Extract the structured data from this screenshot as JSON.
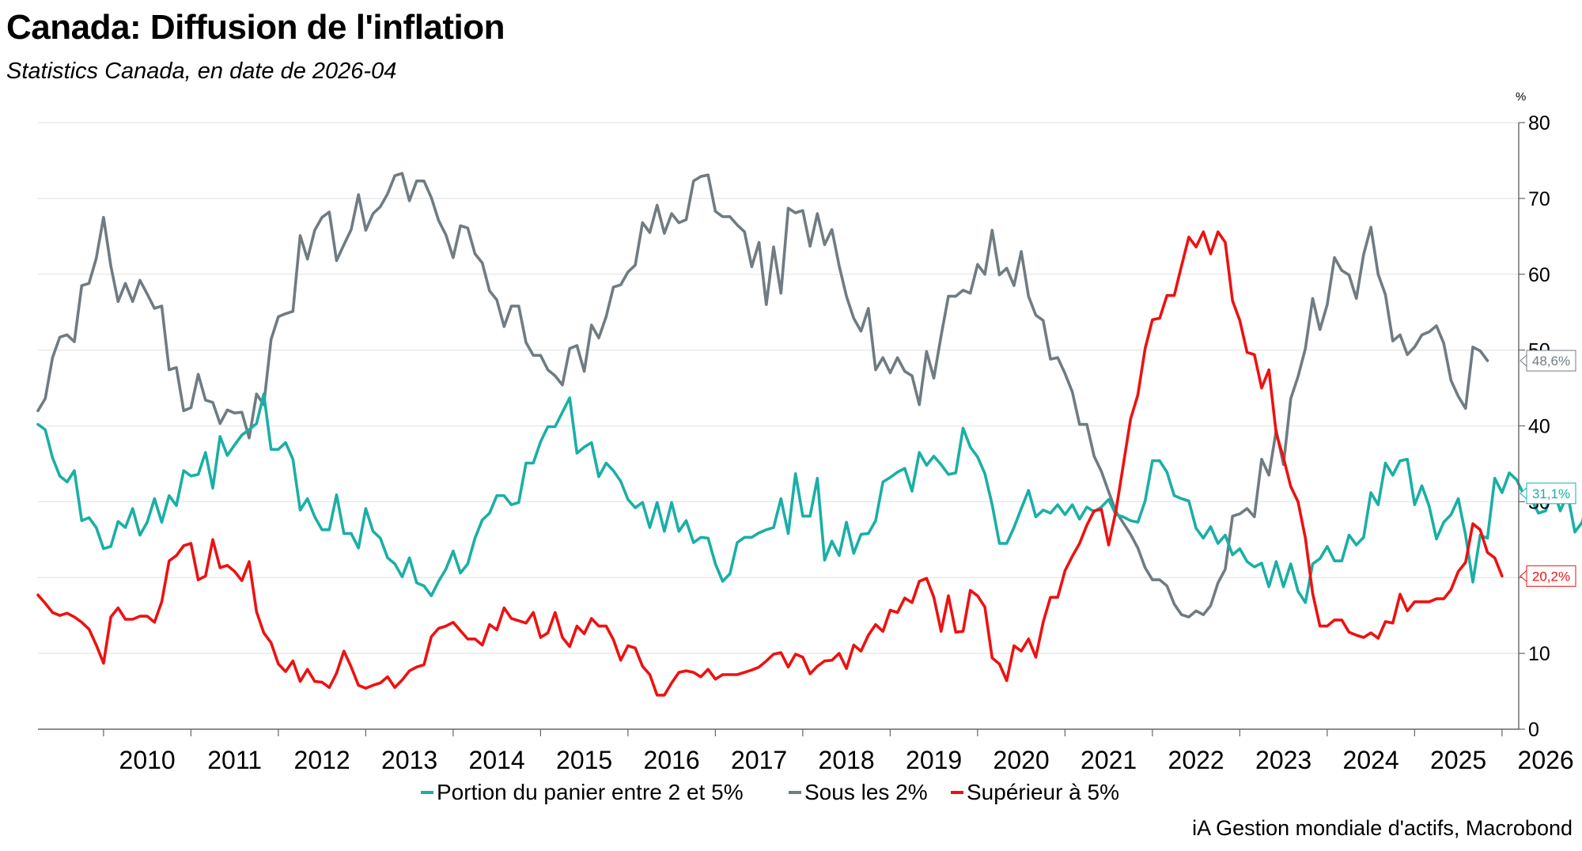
{
  "title": "Canada: Diffusion de l'inflation",
  "subtitle": "Statistics Canada, en date de 2026-04",
  "source": "iA Gestion mondiale d'actifs, Macrobond",
  "chart_data": {
    "type": "line",
    "y_unit": "%",
    "ylim": [
      0,
      80
    ],
    "y_ticks": [
      0,
      10,
      20,
      30,
      40,
      50,
      60,
      70,
      80
    ],
    "x_start": "2009-04",
    "x_end": "2026-04",
    "x_tick_labels": [
      "2010",
      "2011",
      "2012",
      "2013",
      "2014",
      "2015",
      "2016",
      "2017",
      "2018",
      "2019",
      "2020",
      "2021",
      "2022",
      "2023",
      "2024",
      "2025",
      "2026"
    ],
    "grid": "horizontal",
    "legend_position": "bottom",
    "series": [
      {
        "name": "Portion du panier entre 2 et 5%",
        "color": "#1aafa6",
        "end_label": "31,1%",
        "values": [
          40.2,
          39.5,
          35.8,
          33.4,
          32.6,
          34.1,
          27.5,
          27.9,
          26.6,
          23.8,
          24.1,
          27.4,
          26.6,
          29.1,
          25.6,
          27.3,
          30.4,
          27.3,
          30.8,
          29.5,
          34.1,
          33.4,
          33.6,
          36.5,
          31.8,
          38.6,
          36.1,
          37.5,
          38.8,
          39.5,
          40.3,
          44.2,
          36.9,
          36.9,
          37.8,
          35.6,
          28.9,
          30.4,
          28.0,
          26.3,
          26.3,
          30.9,
          25.8,
          25.8,
          23.9,
          29.1,
          26.1,
          25.2,
          22.6,
          21.8,
          20.1,
          22.6,
          19.3,
          18.9,
          17.6,
          19.5,
          21.1,
          23.5,
          20.6,
          21.8,
          25.2,
          27.6,
          28.5,
          30.8,
          30.8,
          29.6,
          29.9,
          35.1,
          35.1,
          37.9,
          39.9,
          39.9,
          41.8,
          43.7,
          36.4,
          37.2,
          37.8,
          33.3,
          35.1,
          34.1,
          32.7,
          30.3,
          29.2,
          29.9,
          26.6,
          29.9,
          26.1,
          29.9,
          26.1,
          27.5,
          24.6,
          25.3,
          25.2,
          21.8,
          19.5,
          20.5,
          24.6,
          25.3,
          25.3,
          25.9,
          26.3,
          26.6,
          30.4,
          25.8,
          33.7,
          28.1,
          28.1,
          33.1,
          22.3,
          24.8,
          22.9,
          27.3,
          23.2,
          25.7,
          25.8,
          27.5,
          32.6,
          33.2,
          33.9,
          34.4,
          31.4,
          36.5,
          34.8,
          36.0,
          34.9,
          33.6,
          33.8,
          39.7,
          37.2,
          35.9,
          33.7,
          29.6,
          24.5,
          24.5,
          26.6,
          29.1,
          31.5,
          28.0,
          28.9,
          28.5,
          29.6,
          28.3,
          29.6,
          27.7,
          29.3,
          28.7,
          29.3,
          30.3,
          28.3,
          28.0,
          27.5,
          27.3,
          30.1,
          35.4,
          35.4,
          33.9,
          30.8,
          30.4,
          30.1,
          26.5,
          25.2,
          26.7,
          24.5,
          25.6,
          23.0,
          23.8,
          22.1,
          21.4,
          21.9,
          18.8,
          22.1,
          18.8,
          21.8,
          18.2,
          16.7,
          21.8,
          22.5,
          24.1,
          22.2,
          22.2,
          25.6,
          24.3,
          25.3,
          31.2,
          29.6,
          35.1,
          33.5,
          35.4,
          35.6,
          29.6,
          32.1,
          29.4,
          25.1,
          27.3,
          28.3,
          30.4,
          25.6,
          19.4,
          25.6,
          25.2,
          33.1,
          31.2,
          33.8,
          32.9,
          30.9,
          30.4,
          28.5,
          28.8,
          31.8,
          28.8,
          31.0,
          26.0,
          27.3,
          31.1
        ]
      },
      {
        "name": "Sous les 2%",
        "color": "#707b82",
        "end_label": "48,6%",
        "values": [
          42.0,
          43.6,
          49.0,
          51.7,
          52.0,
          51.1,
          58.5,
          58.8,
          62.1,
          67.5,
          61.1,
          56.4,
          58.8,
          56.4,
          59.2,
          57.4,
          55.5,
          55.8,
          47.4,
          47.7,
          42.0,
          42.4,
          46.8,
          43.4,
          43.1,
          40.3,
          42.1,
          41.7,
          41.8,
          38.4,
          44.2,
          42.8,
          51.4,
          54.4,
          54.8,
          55.1,
          65.1,
          62.0,
          65.8,
          67.5,
          68.2,
          61.8,
          63.9,
          65.9,
          70.5,
          65.8,
          68.0,
          68.9,
          70.6,
          73.0,
          73.3,
          69.7,
          72.3,
          72.3,
          70.1,
          67.1,
          65.2,
          62.2,
          66.4,
          66.1,
          62.7,
          61.5,
          57.8,
          56.6,
          53.1,
          55.8,
          55.8,
          51.0,
          49.3,
          49.3,
          47.4,
          46.6,
          45.4,
          50.2,
          50.6,
          47.2,
          53.3,
          51.6,
          54.4,
          58.3,
          58.6,
          60.3,
          61.2,
          66.8,
          65.5,
          69.1,
          65.4,
          68.0,
          66.8,
          67.2,
          72.3,
          72.9,
          73.1,
          68.3,
          67.6,
          67.6,
          66.5,
          65.6,
          61.0,
          64.2,
          56.0,
          63.6,
          57.5,
          68.7,
          68.1,
          68.4,
          63.7,
          68.0,
          63.9,
          65.9,
          61.1,
          57.1,
          54.2,
          52.5,
          55.5,
          47.4,
          49.0,
          47.0,
          49.0,
          47.2,
          46.6,
          42.8,
          49.8,
          46.3,
          51.9,
          57.1,
          57.1,
          57.9,
          57.5,
          61.3,
          60.0,
          65.8,
          59.9,
          60.8,
          58.5,
          63.0,
          57.1,
          54.6,
          53.9,
          48.8,
          49.0,
          46.9,
          44.5,
          40.2,
          40.2,
          36.0,
          34.0,
          31.3,
          28.7,
          27.2,
          25.7,
          23.9,
          21.3,
          19.7,
          19.7,
          18.9,
          16.5,
          15.1,
          14.8,
          15.6,
          15.1,
          16.3,
          19.3,
          21.1,
          28.1,
          28.4,
          29.1,
          28.0,
          35.6,
          33.5,
          39.4,
          34.9,
          43.6,
          46.5,
          50.2,
          56.8,
          52.7,
          56.0,
          62.2,
          60.5,
          59.9,
          56.8,
          62.6,
          66.2,
          60.0,
          57.3,
          51.2,
          52.0,
          49.4,
          50.4,
          52.0,
          52.4,
          53.2,
          50.9,
          46.0,
          43.9,
          42.3,
          50.4,
          49.9,
          48.6
        ]
      },
      {
        "name": "Supérieur à 5%",
        "color": "#ee1111",
        "end_label": "20,2%",
        "values": [
          17.7,
          16.6,
          15.4,
          15.0,
          15.3,
          14.8,
          14.1,
          13.2,
          11.1,
          8.7,
          14.8,
          16.0,
          14.5,
          14.5,
          14.9,
          14.9,
          14.1,
          16.8,
          22.2,
          22.9,
          24.2,
          24.5,
          19.7,
          20.2,
          25.0,
          21.3,
          21.6,
          20.8,
          19.6,
          22.1,
          15.5,
          12.7,
          11.4,
          8.6,
          7.6,
          9.0,
          6.3,
          7.9,
          6.3,
          6.2,
          5.5,
          7.4,
          10.3,
          8.2,
          5.8,
          5.4,
          5.8,
          6.1,
          6.9,
          5.5,
          6.5,
          7.7,
          8.2,
          8.5,
          12.2,
          13.3,
          13.6,
          14.1,
          13.0,
          11.9,
          11.9,
          11.1,
          13.8,
          13.1,
          16.0,
          14.6,
          14.3,
          14.0,
          15.4,
          12.1,
          12.7,
          15.4,
          12.1,
          10.9,
          13.6,
          12.6,
          14.6,
          13.6,
          13.6,
          11.8,
          9.1,
          11.0,
          10.7,
          8.3,
          7.2,
          4.5,
          4.5,
          6.1,
          7.5,
          7.7,
          7.5,
          6.9,
          7.9,
          6.6,
          7.2,
          7.2,
          7.2,
          7.5,
          7.8,
          8.2,
          9.0,
          9.9,
          10.1,
          8.2,
          9.9,
          9.5,
          7.3,
          8.3,
          9.0,
          9.1,
          10.0,
          8.0,
          11.1,
          10.3,
          12.4,
          13.8,
          12.9,
          15.7,
          15.4,
          17.3,
          16.7,
          19.5,
          19.9,
          17.4,
          12.9,
          17.6,
          12.8,
          12.9,
          18.3,
          17.6,
          16.1,
          9.4,
          8.6,
          6.4,
          11.0,
          10.3,
          11.9,
          9.5,
          14.1,
          17.4,
          17.4,
          20.9,
          22.8,
          24.5,
          26.9,
          28.8,
          29.0,
          24.3,
          28.8,
          34.8,
          40.9,
          44.1,
          50.2,
          54.0,
          54.2,
          57.2,
          57.2,
          61.1,
          64.9,
          63.6,
          65.6,
          62.7,
          65.6,
          64.2,
          56.5,
          53.9,
          49.7,
          49.4,
          45.0,
          47.4,
          39.0,
          35.8,
          32.0,
          30.0,
          25.2,
          17.9,
          13.6,
          13.6,
          14.4,
          14.4,
          12.8,
          12.4,
          12.1,
          12.7,
          12.0,
          14.2,
          14.0,
          17.8,
          15.6,
          16.8,
          16.8,
          16.8,
          17.2,
          17.2,
          18.4,
          20.8,
          22.0,
          27.1,
          26.3,
          23.3,
          22.6,
          20.2
        ]
      }
    ]
  }
}
